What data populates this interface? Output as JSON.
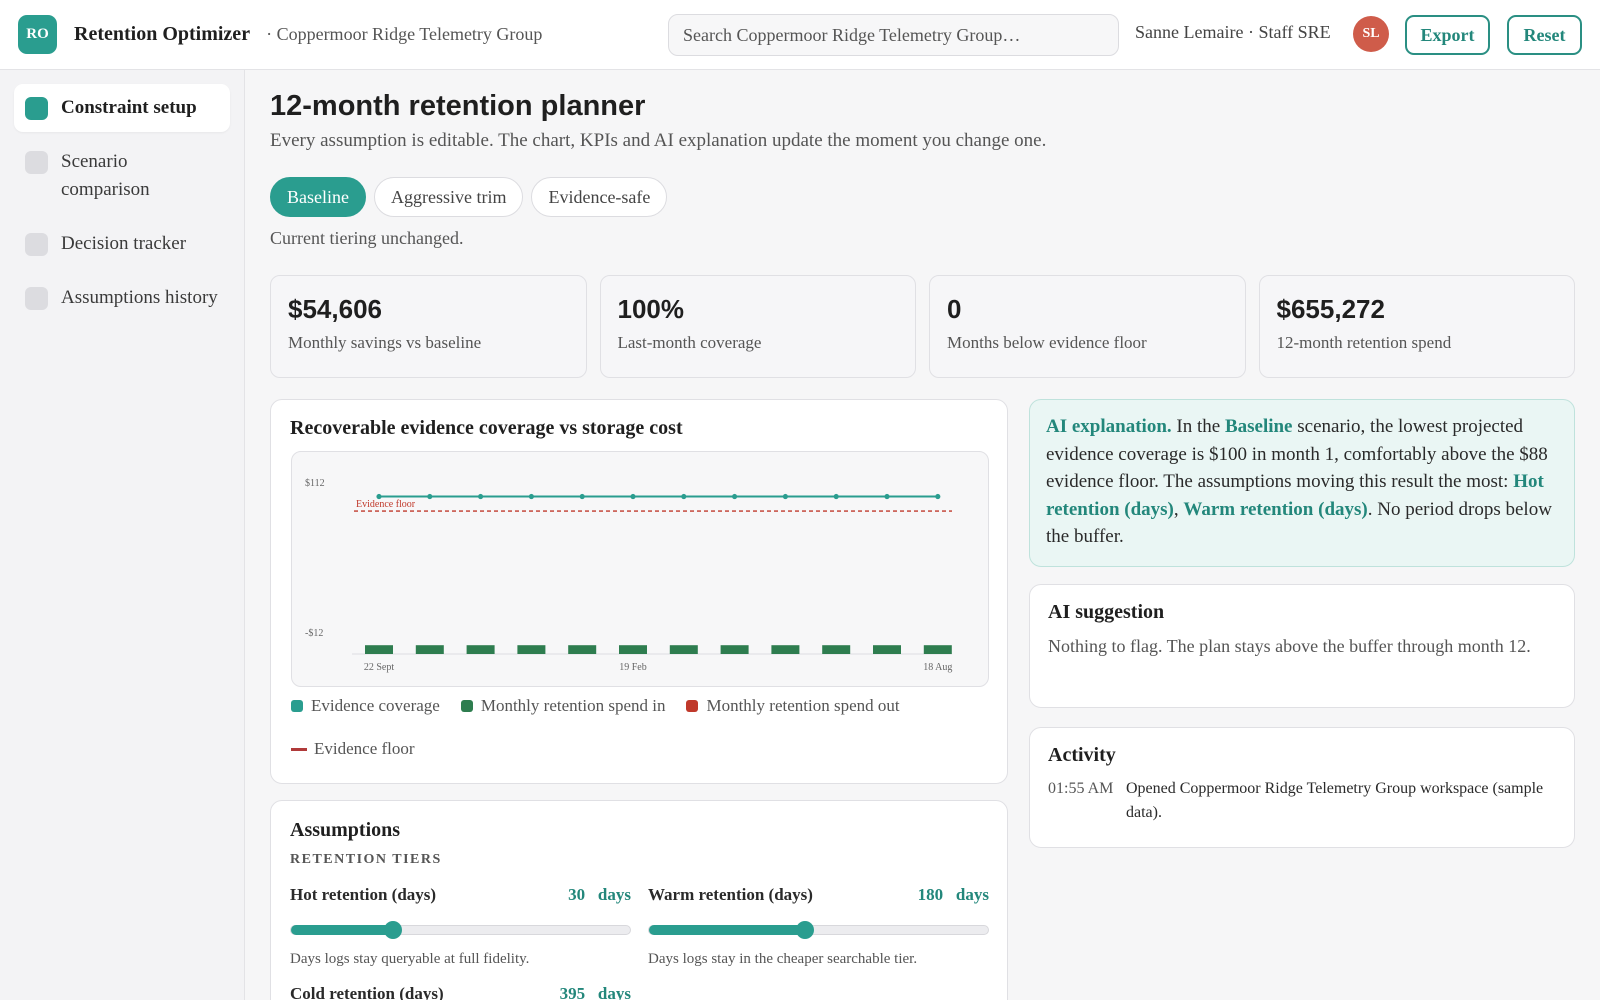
{
  "app": {
    "logo_text": "RO",
    "title": "Retention Optimizer",
    "workspace": "· Coppermoor Ridge Telemetry Group"
  },
  "header": {
    "search_placeholder": "Search Coppermoor Ridge Telemetry Group…",
    "user": "Sanne Lemaire · Staff SRE",
    "avatar_initials": "SL",
    "export_label": "Export",
    "reset_label": "Reset"
  },
  "sidebar": {
    "items": [
      {
        "label": "Constraint setup",
        "active": true
      },
      {
        "label": "Scenario comparison",
        "active": false
      },
      {
        "label": "Decision tracker",
        "active": false
      },
      {
        "label": "Assumptions history",
        "active": false
      }
    ]
  },
  "page": {
    "title": "12-month retention planner",
    "subtitle": "Every assumption is editable. The chart, KPIs and AI explanation update the moment you change one.",
    "tabs": [
      {
        "label": "Baseline",
        "active": true
      },
      {
        "label": "Aggressive trim",
        "active": false
      },
      {
        "label": "Evidence-safe",
        "active": false
      }
    ],
    "tab_note": "Current tiering unchanged."
  },
  "kpis": [
    {
      "value": "$54,606",
      "label": "Monthly savings vs baseline"
    },
    {
      "value": "100%",
      "label": "Last-month coverage"
    },
    {
      "value": "0",
      "label": "Months below evidence floor"
    },
    {
      "value": "$655,272",
      "label": "12-month retention spend"
    }
  ],
  "chart": {
    "title": "Recoverable evidence coverage vs storage cost",
    "legend": [
      {
        "label": "Evidence coverage",
        "color": "#2a9d8f",
        "kind": "square"
      },
      {
        "label": "Monthly retention spend in",
        "color": "#2e7d4f",
        "kind": "square"
      },
      {
        "label": "Monthly retention spend out",
        "color": "#c0392b",
        "kind": "square"
      },
      {
        "label": "Evidence floor",
        "color": "#b03a3a",
        "kind": "line"
      }
    ]
  },
  "chart_data": {
    "type": "bar",
    "x_tick_labels": [
      "22 Sept",
      "19 Feb",
      "18 Aug"
    ],
    "y_tick_labels": [
      "$112",
      "-$12"
    ],
    "ylim": [
      -30,
      112
    ],
    "floor_label": "Evidence floor",
    "floor_value": 88,
    "series": [
      {
        "name": "Evidence coverage",
        "kind": "line",
        "values": [
          100,
          100,
          100,
          100,
          100,
          100,
          100,
          100,
          100,
          100,
          100,
          100
        ]
      },
      {
        "name": "Monthly retention spend in",
        "kind": "bar",
        "values": [
          -27,
          -27,
          -27,
          -27,
          -27,
          -27,
          -27,
          -27,
          -27,
          -27,
          -27,
          -27
        ]
      }
    ],
    "colors": {
      "line": "#2a9d8f",
      "bar": "#2e7d4f",
      "floor": "#c0392b"
    }
  },
  "ai": {
    "label": "AI explanation.",
    "t1": " In the ",
    "scenario": "Baseline",
    "t2": " scenario, the lowest projected evidence coverage is $100 in month 1, comfortably above the $88 evidence floor. The assumptions moving this result the most: ",
    "a1": "Hot retention (days)",
    "t3": ", ",
    "a2": "Warm retention (days)",
    "t4": ". No period drops below the buffer."
  },
  "suggestion": {
    "title": "AI suggestion",
    "text": "Nothing to flag. The plan stays above the buffer through month 12."
  },
  "activity": {
    "title": "Activity",
    "entries": [
      {
        "time": "01:55 AM",
        "text": "Opened Coppermoor Ridge Telemetry Group workspace (sample data)."
      }
    ]
  },
  "assumptions": {
    "title": "Assumptions",
    "section": "RETENTION TIERS",
    "sliders": [
      {
        "label": "Hot retention (days)",
        "value": "30",
        "unit": "days",
        "fraction": 0.3,
        "help": "Days logs stay queryable at full fidelity."
      },
      {
        "label": "Warm retention (days)",
        "value": "180",
        "unit": "days",
        "fraction": 0.46,
        "help": "Days logs stay in the cheaper searchable tier."
      }
    ],
    "cold": {
      "label": "Cold retention (days)",
      "value": "395",
      "unit": "days"
    }
  }
}
